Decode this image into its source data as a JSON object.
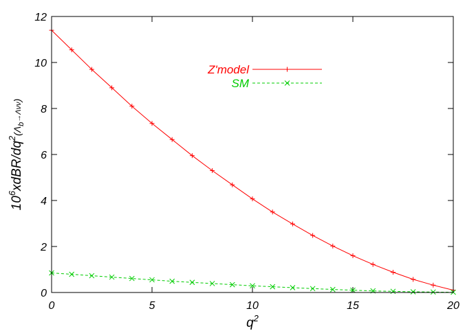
{
  "chart_data": {
    "type": "line",
    "xlabel": "q",
    "xlabel_sup": "2",
    "ylabel_parts": {
      "a": "10",
      "b": "6",
      "c": "xdBR/dq",
      "d": "2",
      "e": "(Λ",
      "f": "b",
      "g": "→Λνν",
      "h": ")"
    },
    "xlim": [
      0,
      20
    ],
    "ylim": [
      0,
      12
    ],
    "xticks": [
      0,
      5,
      10,
      15,
      20
    ],
    "yticks": [
      0,
      2,
      4,
      6,
      8,
      10,
      12
    ],
    "grid": false,
    "legend_position": "top-center",
    "x": [
      0,
      1,
      2,
      3,
      4,
      5,
      6,
      7,
      8,
      9,
      10,
      11,
      12,
      13,
      14,
      15,
      16,
      17,
      18,
      19,
      20
    ],
    "series": [
      {
        "name": "Z'model",
        "color": "#ff0000",
        "marker": "plus",
        "line": "solid",
        "values": [
          11.4,
          10.55,
          9.7,
          8.9,
          8.1,
          7.35,
          6.65,
          5.95,
          5.3,
          4.68,
          4.07,
          3.5,
          2.98,
          2.48,
          2.02,
          1.6,
          1.22,
          0.88,
          0.57,
          0.32,
          0.1
        ]
      },
      {
        "name": "SM",
        "color": "#00cc00",
        "marker": "x",
        "line": "dashed",
        "values": [
          0.85,
          0.79,
          0.73,
          0.67,
          0.61,
          0.55,
          0.49,
          0.44,
          0.39,
          0.34,
          0.29,
          0.25,
          0.21,
          0.17,
          0.13,
          0.1,
          0.07,
          0.05,
          0.03,
          0.02,
          0.01
        ]
      }
    ]
  }
}
